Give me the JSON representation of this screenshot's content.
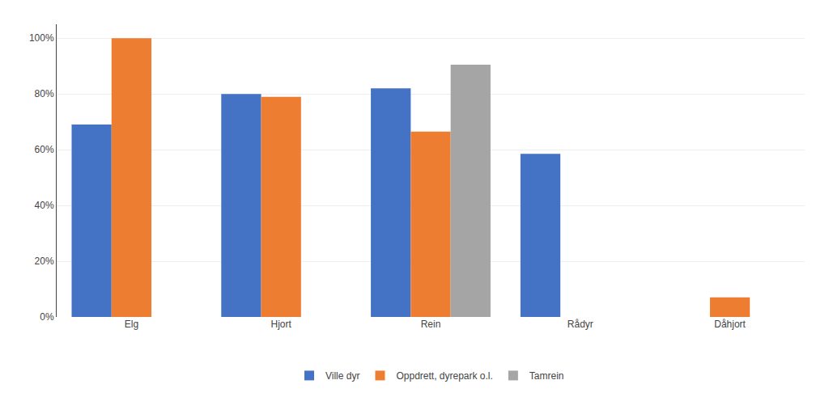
{
  "chart_data": {
    "type": "bar",
    "categories": [
      "Elg",
      "Hjort",
      "Rein",
      "Rådyr",
      "Dåhjort"
    ],
    "series": [
      {
        "name": "Ville dyr",
        "color": "#4472C4",
        "values": [
          0.69,
          0.8,
          0.82,
          0.585,
          0.0
        ]
      },
      {
        "name": "Oppdrett, dyrepark o.l.",
        "color": "#ED7D31",
        "values": [
          1.0,
          0.79,
          0.665,
          0.0,
          0.07
        ]
      },
      {
        "name": "Tamrein",
        "color": "#A5A5A5",
        "values": [
          0.0,
          0.0,
          0.905,
          0.0,
          0.0
        ]
      }
    ],
    "ylim": [
      0,
      1.05
    ],
    "yticks": [
      {
        "value": 0.0,
        "label": "0%"
      },
      {
        "value": 0.2,
        "label": "20%"
      },
      {
        "value": 0.4,
        "label": "40%"
      },
      {
        "value": 0.6,
        "label": "60%"
      },
      {
        "value": 0.8,
        "label": "80%"
      },
      {
        "value": 1.0,
        "label": "100%"
      }
    ],
    "grid": true,
    "legend": "bottom"
  }
}
